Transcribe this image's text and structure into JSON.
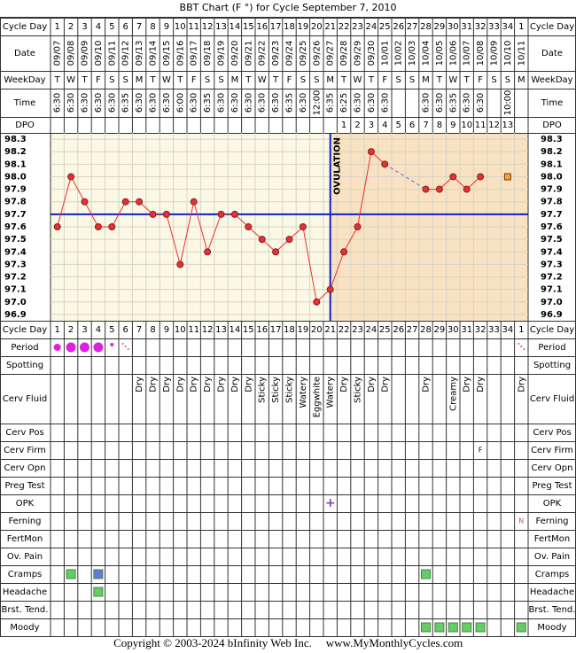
{
  "title": "BBT Chart (F °) for Cycle September 7, 2010",
  "row_labels": {
    "cycle_day": "Cycle Day",
    "date": "Date",
    "weekday": "WeekDay",
    "time": "Time",
    "dpo": "DPO",
    "period": "Period",
    "spotting": "Spotting",
    "cerv_fluid": "Cerv Fluid",
    "cerv_pos": "Cerv Pos",
    "cerv_firm": "Cerv Firm",
    "cerv_opn": "Cerv Opn",
    "preg_test": "Preg Test",
    "opk": "OPK",
    "ferning": "Ferning",
    "fertmon": "FertMon",
    "ov_pain": "Ov. Pain",
    "cramps": "Cramps",
    "headache": "Headache",
    "brst_tend": "Brst. Tend.",
    "moody": "Moody"
  },
  "cycle_days": [
    1,
    2,
    3,
    4,
    5,
    6,
    7,
    8,
    9,
    10,
    11,
    12,
    13,
    14,
    15,
    16,
    17,
    18,
    19,
    20,
    21,
    22,
    23,
    24,
    25,
    26,
    27,
    28,
    29,
    30,
    31,
    32,
    33,
    34,
    1
  ],
  "dates": [
    "09/07",
    "09/08",
    "09/09",
    "09/10",
    "09/11",
    "09/12",
    "09/13",
    "09/14",
    "09/15",
    "09/16",
    "09/17",
    "09/18",
    "09/19",
    "09/20",
    "09/21",
    "09/22",
    "09/23",
    "09/24",
    "09/25",
    "09/26",
    "09/27",
    "09/28",
    "09/29",
    "09/30",
    "10/01",
    "10/02",
    "10/03",
    "10/04",
    "10/05",
    "10/06",
    "10/07",
    "10/08",
    "10/09",
    "10/10",
    "10/11"
  ],
  "weekdays": [
    "T",
    "W",
    "T",
    "F",
    "S",
    "S",
    "M",
    "T",
    "W",
    "T",
    "F",
    "S",
    "S",
    "M",
    "T",
    "W",
    "T",
    "F",
    "S",
    "S",
    "M",
    "T",
    "W",
    "T",
    "F",
    "S",
    "S",
    "M",
    "T",
    "W",
    "T",
    "F",
    "S",
    "S",
    "M"
  ],
  "times": [
    "6:30",
    "6:30",
    "6:30",
    "6:30",
    "6:30",
    "6:35",
    "6:30",
    "6:30",
    "6:30",
    "6:00",
    "6:30",
    "6:35",
    "6:30",
    "6:30",
    "6:30",
    "6:30",
    "6:30",
    "6:35",
    "6:30",
    "12:00",
    "6:35",
    "6:25",
    "6:30",
    "6:30",
    "6:30",
    null,
    null,
    "6:30",
    "6:30",
    "6:35",
    "6:30",
    "6:30",
    null,
    "10:00",
    null
  ],
  "dpo": [
    null,
    null,
    null,
    null,
    null,
    null,
    null,
    null,
    null,
    null,
    null,
    null,
    null,
    null,
    null,
    null,
    null,
    null,
    null,
    null,
    null,
    1,
    2,
    3,
    4,
    5,
    6,
    7,
    8,
    9,
    10,
    11,
    12,
    13,
    null
  ],
  "chart_data": {
    "type": "line",
    "values": [
      97.6,
      98.0,
      97.8,
      97.6,
      97.6,
      97.8,
      97.8,
      97.7,
      97.7,
      97.3,
      97.8,
      97.4,
      97.7,
      97.7,
      97.6,
      97.5,
      97.4,
      97.5,
      97.6,
      97.0,
      97.1,
      97.4,
      97.6,
      98.2,
      98.1,
      null,
      null,
      97.9,
      97.9,
      98.0,
      97.9,
      98.0,
      null,
      null,
      null
    ],
    "color": "#e83030",
    "discarded_values": [
      null,
      null,
      null,
      null,
      null,
      null,
      null,
      null,
      null,
      null,
      null,
      null,
      null,
      null,
      null,
      null,
      null,
      null,
      null,
      null,
      null,
      null,
      null,
      null,
      null,
      null,
      null,
      null,
      null,
      null,
      null,
      null,
      null,
      98.0,
      null
    ],
    "discarded_color": "#f5a030",
    "ylim": [
      96.85,
      98.35
    ],
    "yticks": [
      98.3,
      98.2,
      98.1,
      {
        "value": 98,
        "label": "98.0"
      },
      97.9,
      97.8,
      97.7,
      97.6,
      97.5,
      97.4,
      97.3,
      97.2,
      97.1,
      {
        "value": 97,
        "label": "97.0"
      },
      96.9
    ],
    "grid": true,
    "coverline": 97.7,
    "ovulation_day": 21,
    "ovulation_label": "OVULATION"
  },
  "period": [
    "medium",
    "heavy",
    "heavy",
    "heavy",
    "light",
    "spotting",
    null,
    null,
    null,
    null,
    null,
    null,
    null,
    null,
    null,
    null,
    null,
    null,
    null,
    null,
    null,
    null,
    null,
    null,
    null,
    null,
    null,
    null,
    null,
    null,
    null,
    null,
    null,
    null,
    "spotting"
  ],
  "cerv_fluid": [
    null,
    null,
    null,
    null,
    null,
    null,
    "Dry",
    "Dry",
    "Dry",
    "Dry",
    "Dry",
    "Dry",
    "Dry",
    "Dry",
    "Dry",
    "Sticky",
    "Sticky",
    "Sticky",
    "Watery",
    "Eggwhite",
    "Watery",
    "Dry",
    "Sticky",
    "Dry",
    "Dry",
    null,
    null,
    "Dry",
    null,
    "Creamy",
    "Dry",
    "Dry",
    null,
    null,
    "Dry"
  ],
  "cerv_firm": [
    null,
    null,
    null,
    null,
    null,
    null,
    null,
    null,
    null,
    null,
    null,
    null,
    null,
    null,
    null,
    null,
    null,
    null,
    null,
    null,
    null,
    null,
    null,
    null,
    null,
    null,
    null,
    null,
    null,
    null,
    null,
    "F",
    null,
    null,
    null
  ],
  "opk": [
    null,
    null,
    null,
    null,
    null,
    null,
    null,
    null,
    null,
    null,
    null,
    null,
    null,
    null,
    null,
    null,
    null,
    null,
    null,
    null,
    "+",
    null,
    null,
    null,
    null,
    null,
    null,
    null,
    null,
    null,
    null,
    null,
    null,
    null,
    null
  ],
  "ferning": [
    null,
    null,
    null,
    null,
    null,
    null,
    null,
    null,
    null,
    null,
    null,
    null,
    null,
    null,
    null,
    null,
    null,
    null,
    null,
    null,
    null,
    null,
    null,
    null,
    null,
    null,
    null,
    null,
    null,
    null,
    null,
    null,
    null,
    null,
    "N"
  ],
  "cramps": [
    null,
    "#66cc66",
    null,
    "#6677dd",
    null,
    null,
    null,
    null,
    null,
    null,
    null,
    null,
    null,
    null,
    null,
    null,
    null,
    null,
    null,
    null,
    null,
    null,
    null,
    null,
    null,
    null,
    null,
    "#66cc66",
    null,
    null,
    null,
    null,
    null,
    null,
    null
  ],
  "headache": [
    null,
    null,
    null,
    "#66cc66",
    null,
    null,
    null,
    null,
    null,
    null,
    null,
    null,
    null,
    null,
    null,
    null,
    null,
    null,
    null,
    null,
    null,
    null,
    null,
    null,
    null,
    null,
    null,
    null,
    null,
    null,
    null,
    null,
    null,
    null,
    null
  ],
  "moody": [
    null,
    null,
    null,
    null,
    null,
    null,
    null,
    null,
    null,
    null,
    null,
    null,
    null,
    null,
    null,
    null,
    null,
    null,
    null,
    null,
    null,
    null,
    null,
    null,
    null,
    null,
    null,
    "#66cc66",
    "#66cc66",
    "#66cc66",
    "#66cc66",
    "#66cc66",
    null,
    null,
    "#66cc66"
  ],
  "copyright": "Copyright © 2003-2024 bInfinity Web Inc.",
  "site": "www.MyMonthlyCycles.com"
}
